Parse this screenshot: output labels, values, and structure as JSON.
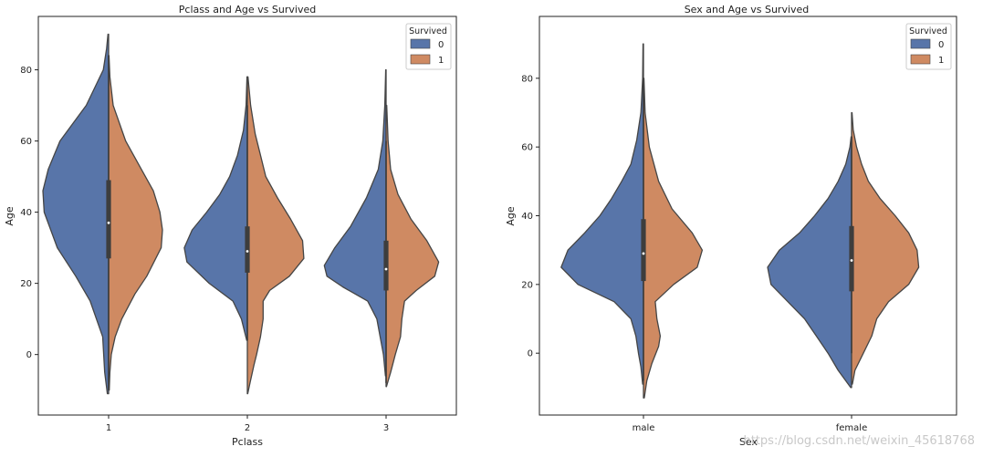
{
  "colors": {
    "died": "#5875A9",
    "survived": "#CF8A62",
    "outline": "#454545",
    "box": "#3d3d3d"
  },
  "watermark": "https://blog.csdn.net/weixin_45618768",
  "chart_data": [
    {
      "type": "violin",
      "split": true,
      "title": "Pclass and Age vs Survived",
      "xlabel": "Pclass",
      "ylabel": "Age",
      "categories": [
        "1",
        "2",
        "3"
      ],
      "ylim": [
        -17,
        95
      ],
      "yticks": [
        0,
        20,
        40,
        60,
        80
      ],
      "legend": {
        "title": "Survived",
        "placement": "top-right",
        "entries": [
          {
            "label": "0",
            "series": "died"
          },
          {
            "label": "1",
            "series": "survived"
          }
        ]
      },
      "series": [
        {
          "name": "0",
          "key": "died",
          "profiles": [
            [
              [
                -11,
                0.02
              ],
              [
                -5,
                0.06
              ],
              [
                5,
                0.09
              ],
              [
                15,
                0.28
              ],
              [
                22,
                0.5
              ],
              [
                30,
                0.78
              ],
              [
                40,
                0.98
              ],
              [
                46,
                1.0
              ],
              [
                52,
                0.92
              ],
              [
                60,
                0.74
              ],
              [
                70,
                0.34
              ],
              [
                80,
                0.08
              ],
              [
                86,
                0.03
              ],
              [
                90,
                0.01
              ]
            ],
            [
              [
                4,
                0.01
              ],
              [
                10,
                0.09
              ],
              [
                15,
                0.22
              ],
              [
                20,
                0.58
              ],
              [
                26,
                0.92
              ],
              [
                30,
                0.96
              ],
              [
                35,
                0.84
              ],
              [
                40,
                0.62
              ],
              [
                45,
                0.42
              ],
              [
                50,
                0.27
              ],
              [
                56,
                0.15
              ],
              [
                63,
                0.06
              ],
              [
                70,
                0.02
              ],
              [
                78,
                0.005
              ]
            ],
            [
              [
                -6,
                0.01
              ],
              [
                0,
                0.04
              ],
              [
                5,
                0.09
              ],
              [
                10,
                0.14
              ],
              [
                15,
                0.28
              ],
              [
                19,
                0.66
              ],
              [
                22,
                0.9
              ],
              [
                25,
                0.94
              ],
              [
                30,
                0.78
              ],
              [
                36,
                0.54
              ],
              [
                44,
                0.3
              ],
              [
                52,
                0.12
              ],
              [
                60,
                0.05
              ],
              [
                70,
                0.02
              ],
              [
                80,
                0.005
              ]
            ]
          ]
        },
        {
          "name": "1",
          "key": "survived",
          "profiles": [
            [
              [
                -10,
                0.01
              ],
              [
                -5,
                0.02
              ],
              [
                0,
                0.04
              ],
              [
                5,
                0.1
              ],
              [
                10,
                0.2
              ],
              [
                17,
                0.4
              ],
              [
                22,
                0.58
              ],
              [
                30,
                0.8
              ],
              [
                35,
                0.82
              ],
              [
                40,
                0.78
              ],
              [
                46,
                0.68
              ],
              [
                52,
                0.5
              ],
              [
                60,
                0.26
              ],
              [
                70,
                0.07
              ],
              [
                78,
                0.02
              ],
              [
                84,
                0.005
              ]
            ],
            [
              [
                -11,
                0.005
              ],
              [
                -8,
                0.04
              ],
              [
                -3,
                0.1
              ],
              [
                0,
                0.14
              ],
              [
                5,
                0.2
              ],
              [
                10,
                0.24
              ],
              [
                15,
                0.24
              ],
              [
                18,
                0.34
              ],
              [
                22,
                0.64
              ],
              [
                27,
                0.86
              ],
              [
                32,
                0.84
              ],
              [
                38,
                0.66
              ],
              [
                44,
                0.46
              ],
              [
                50,
                0.28
              ],
              [
                56,
                0.2
              ],
              [
                62,
                0.12
              ],
              [
                70,
                0.05
              ],
              [
                78,
                0.01
              ]
            ],
            [
              [
                -9,
                0.005
              ],
              [
                -5,
                0.07
              ],
              [
                0,
                0.14
              ],
              [
                5,
                0.22
              ],
              [
                10,
                0.24
              ],
              [
                15,
                0.28
              ],
              [
                18,
                0.46
              ],
              [
                22,
                0.74
              ],
              [
                26,
                0.8
              ],
              [
                32,
                0.62
              ],
              [
                38,
                0.38
              ],
              [
                45,
                0.18
              ],
              [
                52,
                0.07
              ],
              [
                60,
                0.03
              ],
              [
                70,
                0.01
              ]
            ]
          ]
        }
      ],
      "boxes": [
        {
          "q1": 27,
          "median": 37,
          "q3": 49,
          "whisker_low": -10,
          "whisker_high": 84
        },
        {
          "q1": 23,
          "median": 29,
          "q3": 36,
          "whisker_low": 4,
          "whisker_high": 70
        },
        {
          "q1": 18,
          "median": 24,
          "q3": 32,
          "whisker_low": -8,
          "whisker_high": 60
        }
      ]
    },
    {
      "type": "violin",
      "split": true,
      "title": "Sex and Age vs Survived",
      "xlabel": "Sex",
      "ylabel": "Age",
      "categories": [
        "male",
        "female"
      ],
      "ylim": [
        -18,
        98
      ],
      "yticks": [
        0,
        20,
        40,
        60,
        80
      ],
      "legend": {
        "title": "Survived",
        "placement": "top-right",
        "entries": [
          {
            "label": "0",
            "series": "died"
          },
          {
            "label": "1",
            "series": "survived"
          }
        ]
      },
      "series": [
        {
          "name": "0",
          "key": "died",
          "profiles": [
            [
              [
                -9,
                0.01
              ],
              [
                -4,
                0.03
              ],
              [
                0,
                0.06
              ],
              [
                5,
                0.09
              ],
              [
                10,
                0.15
              ],
              [
                15,
                0.35
              ],
              [
                20,
                0.78
              ],
              [
                25,
                0.98
              ],
              [
                30,
                0.9
              ],
              [
                35,
                0.7
              ],
              [
                40,
                0.52
              ],
              [
                45,
                0.38
              ],
              [
                50,
                0.26
              ],
              [
                55,
                0.15
              ],
              [
                62,
                0.08
              ],
              [
                70,
                0.03
              ],
              [
                80,
                0.01
              ],
              [
                90,
                0.005
              ]
            ],
            [
              [
                -10,
                0.01
              ],
              [
                -5,
                0.16
              ],
              [
                0,
                0.28
              ],
              [
                5,
                0.42
              ],
              [
                10,
                0.56
              ],
              [
                15,
                0.76
              ],
              [
                20,
                0.96
              ],
              [
                25,
                1.0
              ],
              [
                30,
                0.86
              ],
              [
                35,
                0.62
              ],
              [
                40,
                0.44
              ],
              [
                45,
                0.28
              ],
              [
                50,
                0.16
              ],
              [
                55,
                0.07
              ],
              [
                60,
                0.02
              ],
              [
                63,
                0.005
              ]
            ]
          ]
        },
        {
          "name": "1",
          "key": "survived",
          "profiles": [
            [
              [
                -13,
                0.01
              ],
              [
                -8,
                0.04
              ],
              [
                -3,
                0.1
              ],
              [
                2,
                0.18
              ],
              [
                5,
                0.2
              ],
              [
                10,
                0.16
              ],
              [
                15,
                0.14
              ],
              [
                20,
                0.36
              ],
              [
                25,
                0.64
              ],
              [
                30,
                0.7
              ],
              [
                35,
                0.58
              ],
              [
                42,
                0.34
              ],
              [
                50,
                0.18
              ],
              [
                60,
                0.07
              ],
              [
                70,
                0.02
              ],
              [
                80,
                0.005
              ]
            ],
            [
              [
                -9,
                0.01
              ],
              [
                -5,
                0.04
              ],
              [
                0,
                0.14
              ],
              [
                5,
                0.24
              ],
              [
                10,
                0.3
              ],
              [
                15,
                0.44
              ],
              [
                20,
                0.68
              ],
              [
                25,
                0.8
              ],
              [
                30,
                0.78
              ],
              [
                35,
                0.68
              ],
              [
                40,
                0.52
              ],
              [
                45,
                0.34
              ],
              [
                50,
                0.2
              ],
              [
                55,
                0.12
              ],
              [
                60,
                0.06
              ],
              [
                65,
                0.02
              ],
              [
                70,
                0.005
              ]
            ]
          ]
        }
      ],
      "boxes": [
        {
          "q1": 21,
          "median": 29,
          "q3": 39,
          "whisker_low": -8,
          "whisker_high": 80
        },
        {
          "q1": 18,
          "median": 27,
          "q3": 37,
          "whisker_low": 0,
          "whisker_high": 63
        }
      ]
    }
  ]
}
